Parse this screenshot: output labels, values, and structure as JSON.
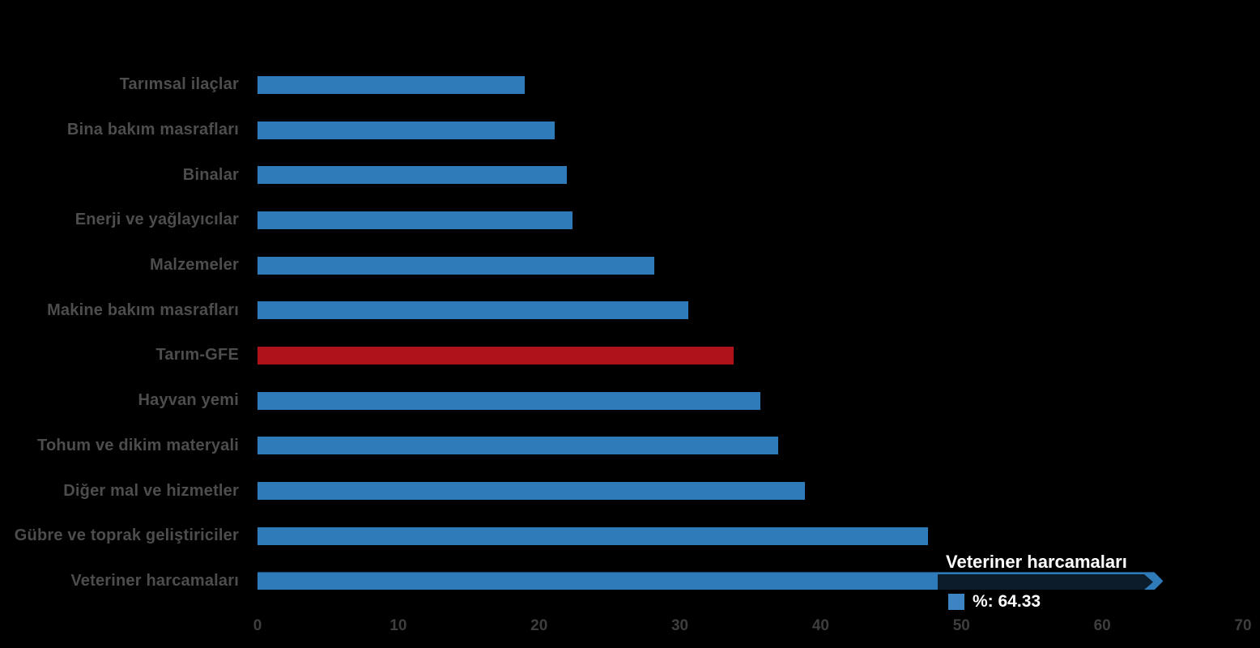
{
  "page": {
    "background_color": "#000000"
  },
  "chart_data": {
    "type": "bar",
    "orientation": "horizontal",
    "title": "",
    "xlabel": "",
    "ylabel": "",
    "categories": [
      "Tarımsal ilaçlar",
      "Bina bakım masrafları",
      "Binalar",
      "Enerji  ve yağlayıcılar",
      "Malzemeler",
      "Makine bakım masrafları",
      "Tarım-GFE",
      "Hayvan yemi",
      "Tohum ve dikim materyali",
      "Diğer mal ve hizmetler",
      "Gübre ve toprak geliştiriciler",
      "Veteriner harcamaları"
    ],
    "series": [
      {
        "name": "%",
        "values": [
          19.0,
          21.1,
          22.0,
          22.4,
          28.2,
          30.6,
          33.8,
          35.7,
          37.0,
          38.9,
          47.6,
          64.33
        ]
      }
    ],
    "xlim": [
      0,
      70
    ],
    "x_ticks": [
      "0",
      "10",
      "20",
      "30",
      "40",
      "50",
      "60",
      "70"
    ],
    "grid": false,
    "legend": "none",
    "highlight_index": 6,
    "pointer_index": 11,
    "colors": {
      "bar": "#2F7BBA",
      "highlight": "#AF1319",
      "category_label": "#4D4D4D",
      "tick_label": "#3E3E3E"
    }
  },
  "tooltip": {
    "title": "Veteriner harcamaları",
    "series_name": "%",
    "value": "64.33",
    "value_text": "%: 64.33",
    "swatch_color": "#3C84C4",
    "band_color": "#0C1C2A",
    "text_color": "#FFFFFF"
  }
}
